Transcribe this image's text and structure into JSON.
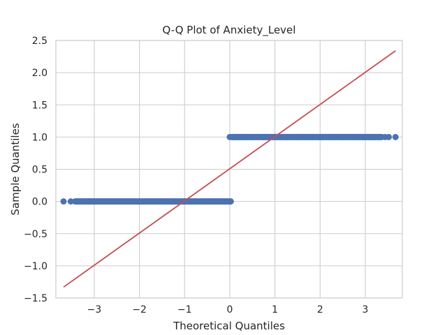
{
  "chart_data": {
    "type": "scatter",
    "title": "Q-Q Plot of Anxiety_Level",
    "xlabel": "Theoretical Quantiles",
    "ylabel": "Sample Quantiles",
    "xlim": [
      -3.85,
      3.82
    ],
    "ylim": [
      -1.5,
      2.5
    ],
    "xticks": [
      -3,
      -2,
      -1,
      0,
      1,
      2,
      3
    ],
    "xtick_labels": [
      "−3",
      "−2",
      "−1",
      "0",
      "1",
      "2",
      "3"
    ],
    "yticks": [
      -1.5,
      -1.0,
      -0.5,
      0.0,
      0.5,
      1.0,
      1.5,
      2.0,
      2.5
    ],
    "ytick_labels": [
      "−1.5",
      "−1.0",
      "−0.5",
      "0.0",
      "0.5",
      "1.0",
      "1.5",
      "2.0",
      "2.5"
    ],
    "grid": true,
    "colors": {
      "points": "#4c72b0",
      "line": "#c44e52",
      "grid": "#cccccc",
      "spine": "#cccccc"
    },
    "series": [
      {
        "kind": "points",
        "x": [
          -3.68,
          -3.52,
          -3.42,
          -3.35,
          -3.28,
          -3.2,
          -3.1,
          -3.0,
          -2.85,
          -2.7,
          -2.5,
          -2.25,
          -2.0,
          -1.75,
          -1.5,
          -1.25,
          -1.0,
          -0.75,
          -0.5,
          -0.25,
          -0.1,
          0.0,
          0.02,
          0.0,
          0.05,
          0.15,
          0.3,
          0.5,
          0.75,
          1.0,
          1.25,
          1.5,
          1.75,
          2.0,
          2.25,
          2.5,
          2.75,
          2.95,
          3.1,
          3.2,
          3.28,
          3.36,
          3.44,
          3.52,
          3.67
        ],
        "y": [
          0,
          0,
          0,
          0,
          0,
          0,
          0,
          0,
          0,
          0,
          0,
          0,
          0,
          0,
          0,
          0,
          0,
          0,
          0,
          0,
          0,
          0,
          0,
          1,
          1,
          1,
          1,
          1,
          1,
          1,
          1,
          1,
          1,
          1,
          1,
          1,
          1,
          1,
          1,
          1,
          1,
          1,
          1,
          1,
          1
        ]
      },
      {
        "kind": "reference-line",
        "x": [
          -3.68,
          3.67
        ],
        "y": [
          -1.33,
          2.34
        ]
      }
    ]
  }
}
